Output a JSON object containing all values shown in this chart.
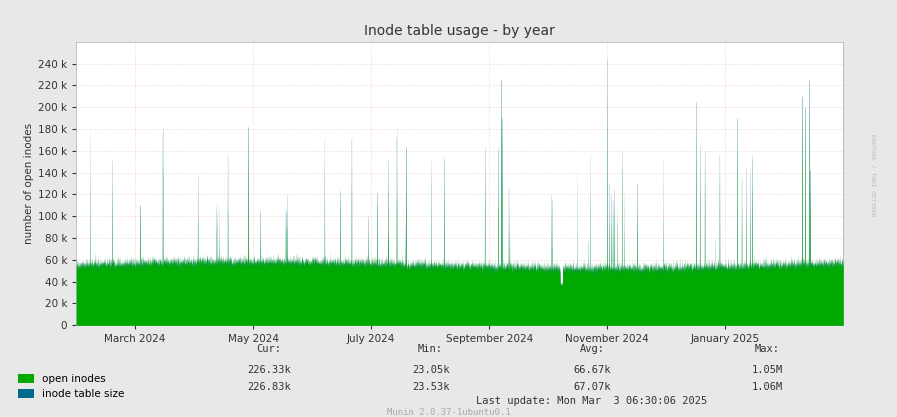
{
  "title": "Inode table usage - by year",
  "ylabel": "number of open inodes",
  "background_color": "#e8e8e8",
  "plot_bg_color": "#ffffff",
  "ylim": [
    0,
    260000
  ],
  "yticks": [
    0,
    20000,
    40000,
    60000,
    80000,
    100000,
    120000,
    140000,
    160000,
    180000,
    200000,
    220000,
    240000
  ],
  "ytick_labels": [
    "0",
    "20 k",
    "40 k",
    "60 k",
    "80 k",
    "100 k",
    "120 k",
    "140 k",
    "160 k",
    "180 k",
    "200 k",
    "220 k",
    "240 k"
  ],
  "color_open": "#00aa00",
  "color_table": "#006b8a",
  "legend_labels": [
    "open inodes",
    "inode table size"
  ],
  "footer_text": "Munin 2.0.37-1ubuntu0.1",
  "right_label": "RRDTOOL / TOBI OETIKER",
  "xticklabels": [
    "March 2024",
    "May 2024",
    "July 2024",
    "September 2024",
    "November 2024",
    "January 2025"
  ],
  "stats_labels": [
    "Cur:",
    "Min:",
    "Avg:",
    "Max:"
  ],
  "row1_vals": [
    "226.33k",
    "23.05k",
    "66.67k",
    "1.05M"
  ],
  "row2_vals": [
    "226.83k",
    "23.53k",
    "67.07k",
    "1.06M"
  ],
  "last_update": "Last update: Mon Mar  3 06:30:06 2025",
  "seed": 42,
  "n_points": 8760
}
